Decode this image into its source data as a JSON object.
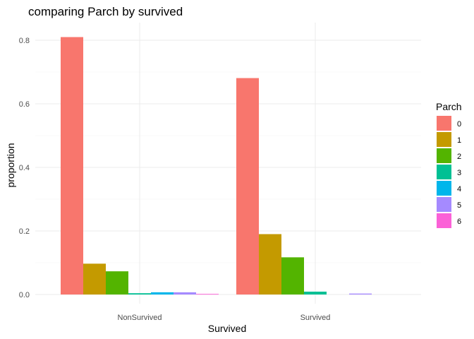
{
  "chart_data": {
    "type": "bar",
    "title": "comparing Parch by survived",
    "xlabel": "Survived",
    "ylabel": "proportion",
    "categories": [
      "NonSurvived",
      "Survived"
    ],
    "ylim": [
      0,
      0.85
    ],
    "yticks": [
      0.0,
      0.2,
      0.4,
      0.6,
      0.8
    ],
    "ytick_labels": [
      "0.0",
      "0.2",
      "0.4",
      "0.6",
      "0.8"
    ],
    "grid": true,
    "legend": {
      "title": "Parch",
      "placement": "right"
    },
    "series": [
      {
        "name": "0",
        "color": "#F8766D",
        "values": [
          0.81,
          0.681
        ]
      },
      {
        "name": "1",
        "color": "#C49A00",
        "values": [
          0.097,
          0.19
        ]
      },
      {
        "name": "2",
        "color": "#53B400",
        "values": [
          0.073,
          0.117
        ]
      },
      {
        "name": "3",
        "color": "#00C094",
        "values": [
          0.004,
          0.009
        ]
      },
      {
        "name": "4",
        "color": "#00B6EB",
        "values": [
          0.007,
          0.0
        ]
      },
      {
        "name": "5",
        "color": "#A58AFF",
        "values": [
          0.007,
          0.003
        ]
      },
      {
        "name": "6",
        "color": "#FB61D7",
        "values": [
          0.002,
          0.0
        ]
      }
    ]
  }
}
